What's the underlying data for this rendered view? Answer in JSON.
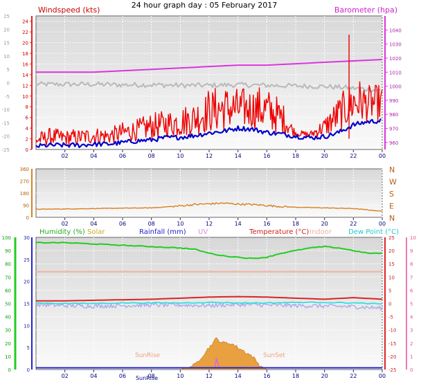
{
  "title": "24 hour graph day : 05 February 2017",
  "colors": {
    "wind": "#ee0000",
    "gust": "#ee0000",
    "windavg": "#0000cc",
    "baro": "#dd33dd",
    "temp_grey": "#bbbbbb",
    "dir": "#d98020",
    "humidity": "#22cc22",
    "solar": "#e8a040",
    "rainfall": "#2222cc",
    "uv": "#dd66dd",
    "temperature": "#dd2222",
    "indoor": "#f4b0a0",
    "dewpoint": "#33dddd",
    "lavender": "#aaaaee"
  },
  "chart_data": [
    {
      "type": "line",
      "name": "wind-barometer",
      "x_ticks": [
        "02",
        "04",
        "06",
        "08",
        "10",
        "12",
        "14",
        "16",
        "18",
        "20",
        "22",
        "00"
      ],
      "y_left_label": "Windspeed (kts)",
      "y_left_ticks": [
        "24",
        "22",
        "20",
        "18",
        "16",
        "14",
        "12",
        "10",
        "8",
        "6",
        "4",
        "2",
        "0"
      ],
      "y_left_ylim": [
        0,
        25
      ],
      "y_outer_ticks": [
        "25",
        "20",
        "15",
        "10",
        "5",
        "0",
        "-5",
        "-10",
        "-15",
        "-20",
        "-25"
      ],
      "y_right_label": "Barometer (hpa)",
      "y_right_ticks": [
        "1040",
        "1030",
        "1020",
        "1010",
        "1000",
        "990",
        "980",
        "970",
        "960"
      ],
      "y_right_ylim": [
        955,
        1050
      ],
      "series": [
        {
          "key": "wind_avg",
          "x": [
            0,
            1,
            2,
            3,
            4,
            5,
            6,
            7,
            8,
            9,
            10,
            11,
            12,
            13,
            14,
            15,
            16,
            17,
            18,
            19,
            20,
            21,
            22,
            23,
            24
          ],
          "values": [
            0.6,
            0.8,
            0.8,
            0.8,
            1.0,
            1.0,
            1.3,
            1.6,
            1.8,
            2.2,
            2.3,
            2.6,
            3.1,
            3.4,
            4.0,
            3.8,
            3.2,
            2.9,
            2.5,
            2.2,
            2.4,
            3.2,
            4.6,
            5.2,
            5.4
          ]
        },
        {
          "key": "gust_envelope",
          "x": [
            0,
            1,
            2,
            3,
            4,
            5,
            6,
            7,
            8,
            9,
            10,
            11,
            12,
            13,
            14,
            15,
            16,
            17,
            18,
            19,
            20,
            21,
            22,
            23,
            24
          ],
          "values": [
            2.8,
            4.0,
            3.6,
            3.8,
            4.2,
            4.0,
            5.0,
            5.6,
            6.8,
            7.2,
            8.0,
            9.0,
            11.0,
            12.0,
            11.2,
            11.5,
            11.6,
            9.0,
            3.6,
            3.4,
            6.0,
            10.0,
            13.2,
            12.0,
            12.0
          ]
        },
        {
          "key": "baro_hpa",
          "x": [
            0,
            2,
            4,
            6,
            8,
            10,
            12,
            14,
            16,
            18,
            20,
            22,
            24
          ],
          "values": [
            1010,
            1010,
            1010,
            1011,
            1012,
            1013,
            1014,
            1015,
            1015,
            1016,
            1017,
            1018,
            1019
          ]
        },
        {
          "key": "temp_grey",
          "x": [
            0,
            2,
            4,
            6,
            8,
            10,
            12,
            14,
            16,
            18,
            20,
            22,
            24
          ],
          "values": [
            12.2,
            12.2,
            12.2,
            12.1,
            12.1,
            12.0,
            12.0,
            12.1,
            12.0,
            11.9,
            11.8,
            11.5,
            11.0
          ]
        }
      ]
    },
    {
      "type": "line",
      "name": "wind-direction",
      "x_ticks": [
        "02",
        "04",
        "06",
        "08",
        "10",
        "12",
        "14",
        "16",
        "18",
        "20",
        "22",
        "00"
      ],
      "y_left_ticks": [
        "360",
        "270",
        "180",
        "90",
        "0"
      ],
      "y_left_ylim": [
        0,
        360
      ],
      "y_right_ticks": [
        "N",
        "W",
        "S",
        "E",
        "N"
      ],
      "series": [
        {
          "key": "direction_deg",
          "x": [
            0,
            2,
            4,
            6,
            8,
            10,
            11,
            12,
            13,
            14,
            15,
            16,
            17,
            18,
            20,
            22,
            23,
            24
          ],
          "values": [
            60,
            62,
            65,
            68,
            70,
            85,
            95,
            100,
            105,
            98,
            95,
            88,
            80,
            75,
            70,
            65,
            55,
            45
          ]
        }
      ]
    },
    {
      "type": "line",
      "name": "humidity-temperature",
      "x_ticks": [
        "02",
        "04",
        "06",
        "08",
        "10",
        "12",
        "14",
        "16",
        "18",
        "20",
        "22",
        "00"
      ],
      "legend": [
        "Humidity (%)",
        "Solar",
        "Rainfall (mm)",
        "UV",
        "Temperature (°C)",
        "Indoor",
        "Dew Point (°C)"
      ],
      "y_hum_ticks": [
        "100",
        "90",
        "80",
        "70",
        "60",
        "50",
        "40",
        "30",
        "20",
        "10",
        "0"
      ],
      "y_hum_ylim": [
        0,
        100
      ],
      "y_rain_ticks": [
        "30",
        "25",
        "20",
        "15",
        "10",
        "5",
        "0"
      ],
      "y_rain_ylim": [
        0,
        30
      ],
      "y_temp_ticks": [
        "25",
        "20",
        "15",
        "10",
        "5",
        "0",
        "-5",
        "-10",
        "-15",
        "-20",
        "-25"
      ],
      "y_temp_ylim": [
        -25,
        25
      ],
      "y_uv_ticks": [
        "10",
        "9",
        "8",
        "7",
        "6",
        "5",
        "4",
        "3",
        "2",
        "1",
        "0"
      ],
      "annotations": [
        "SunRise",
        "SunSet"
      ],
      "series": [
        {
          "key": "humidity",
          "x": [
            0,
            2,
            4,
            6,
            8,
            10,
            11,
            12,
            13,
            14,
            15,
            16,
            17,
            18,
            19,
            20,
            21,
            22,
            23,
            24
          ],
          "values": [
            96,
            96,
            95,
            94,
            93,
            92,
            91,
            88,
            86,
            85,
            84,
            85,
            88,
            90,
            92,
            93,
            92,
            90,
            88,
            88
          ]
        },
        {
          "key": "temperature",
          "x": [
            0,
            2,
            4,
            6,
            8,
            10,
            12,
            14,
            16,
            18,
            20,
            22,
            24
          ],
          "values": [
            1.0,
            1.0,
            1.2,
            1.4,
            1.6,
            2.0,
            2.4,
            2.6,
            2.4,
            2.0,
            1.6,
            2.2,
            1.6
          ]
        },
        {
          "key": "indoor",
          "x": [
            0,
            24
          ],
          "values": [
            12,
            12
          ]
        },
        {
          "key": "dewpoint",
          "x": [
            0,
            2,
            4,
            6,
            8,
            10,
            12,
            14,
            16,
            18,
            20,
            22,
            24
          ],
          "values": [
            0.2,
            0.0,
            0.0,
            0.2,
            0.2,
            0.2,
            0.4,
            0.2,
            0.2,
            0.4,
            0.4,
            0.2,
            -0.2
          ]
        },
        {
          "key": "lavender",
          "x": [
            0,
            2,
            4,
            6,
            8,
            10,
            12,
            14,
            16,
            18,
            20,
            22,
            24
          ],
          "values": [
            -0.4,
            -0.8,
            -1.0,
            -0.8,
            -0.6,
            -0.6,
            -0.8,
            -0.4,
            -0.6,
            -0.8,
            -1.0,
            -1.2,
            -1.8
          ]
        },
        {
          "key": "rainfall_mm",
          "x": [
            0,
            24
          ],
          "values": [
            0.4,
            0.4
          ]
        },
        {
          "key": "solar_area",
          "x": [
            10,
            11,
            11.5,
            12,
            12.5,
            13,
            13.5,
            14,
            14.5,
            15,
            15.5,
            16
          ],
          "values": [
            0,
            1,
            3,
            5,
            7,
            6,
            6,
            5,
            4,
            3,
            1,
            0
          ]
        }
      ]
    }
  ]
}
